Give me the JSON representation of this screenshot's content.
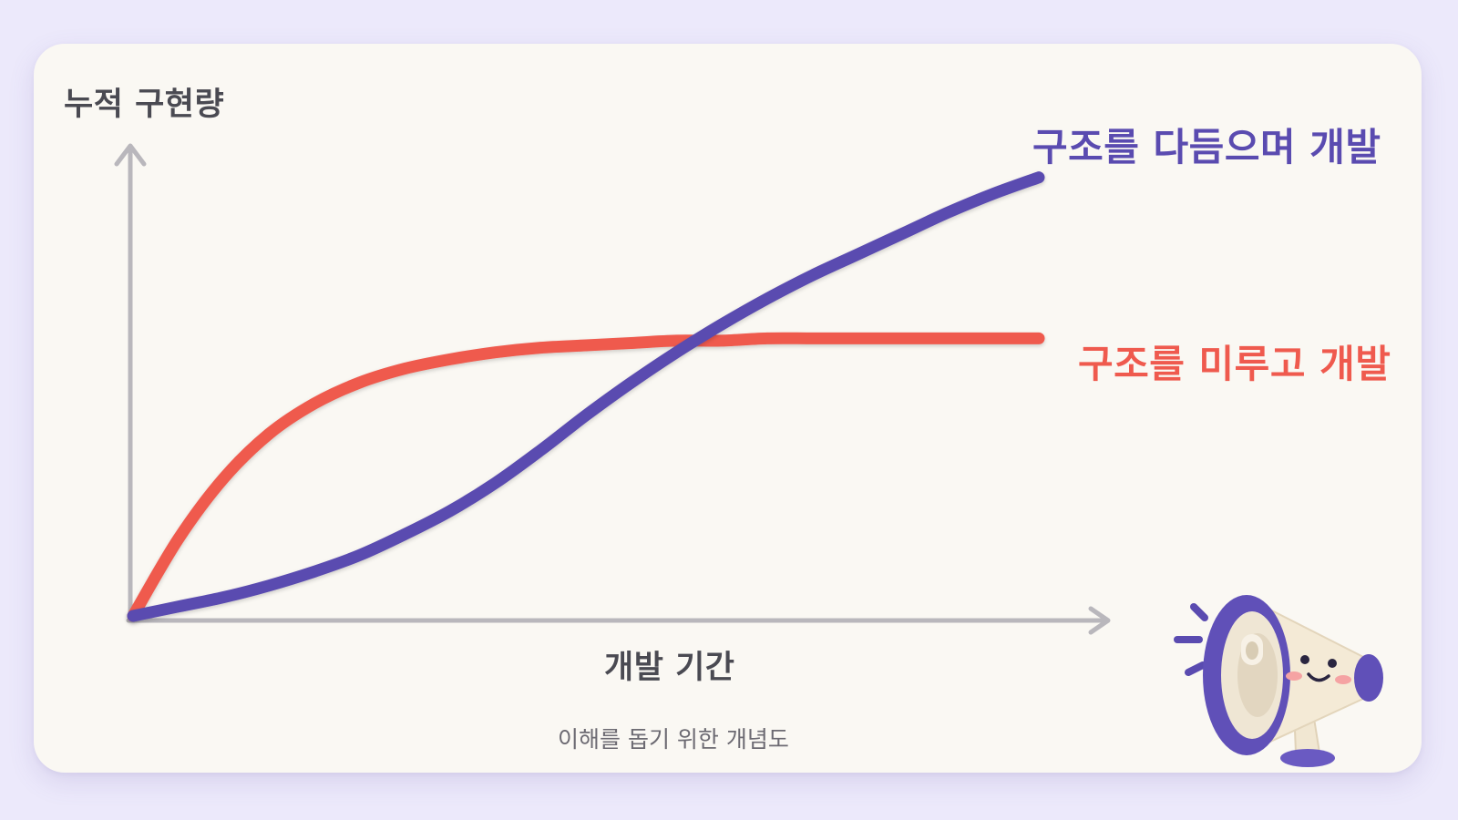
{
  "chart_data": {
    "type": "line",
    "ylabel": "누적 구현량",
    "xlabel": "개발 기간",
    "caption": "이해를 돕기 위한 개념도",
    "x": [
      0,
      0.05,
      0.1,
      0.15,
      0.2,
      0.25,
      0.3,
      0.35,
      0.4,
      0.45,
      0.5,
      0.55,
      0.6,
      0.65,
      0.7,
      0.75,
      0.8,
      0.85,
      0.9,
      0.95,
      1.0
    ],
    "series": [
      {
        "name": "구조를 다듬으며 개발",
        "color": "#5a4bb0",
        "values": [
          0,
          0.04,
          0.08,
          0.13,
          0.19,
          0.26,
          0.35,
          0.45,
          0.57,
          0.71,
          0.86,
          1.0,
          1.13,
          1.25,
          1.36,
          1.46,
          1.55,
          1.64,
          1.73,
          1.81,
          1.88
        ]
      },
      {
        "name": "구조를 미루고 개발",
        "color": "#ef5a4e",
        "values": [
          0,
          0.33,
          0.59,
          0.78,
          0.91,
          1.0,
          1.06,
          1.1,
          1.13,
          1.15,
          1.16,
          1.17,
          1.18,
          1.18,
          1.19,
          1.19,
          1.19,
          1.19,
          1.19,
          1.19,
          1.19
        ]
      }
    ],
    "xlim": [
      0,
      1
    ],
    "ylim": [
      0,
      2
    ],
    "axis_ticks": false,
    "grid": false,
    "legend": "inline labels at line ends"
  },
  "colors": {
    "background": "#ece9fb",
    "card": "#faf8f3",
    "axis": "#b9b7bc",
    "text": "#4a4a52"
  },
  "mascot": {
    "icon": "megaphone-mascot-icon"
  }
}
